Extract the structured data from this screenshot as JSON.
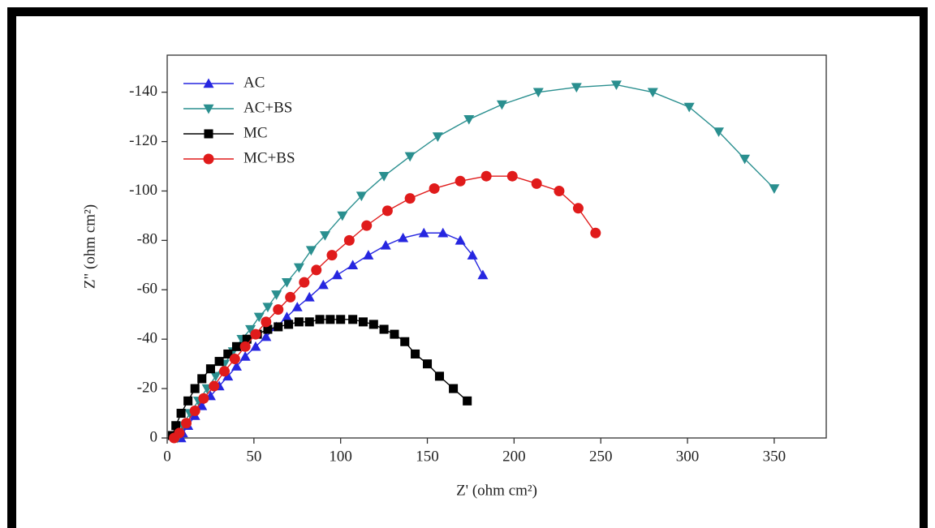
{
  "chart_data": {
    "type": "line",
    "xlabel": "Z' (ohm cm²)",
    "ylabel": "Z\" (ohm cm²)",
    "xlim": [
      0,
      380
    ],
    "ylim": [
      0,
      -155
    ],
    "xticks": [
      0,
      50,
      100,
      150,
      200,
      250,
      300,
      350
    ],
    "yticks": [
      0,
      -20,
      -40,
      -60,
      -80,
      -100,
      -120,
      -140
    ],
    "legend": "upper left",
    "series": [
      {
        "name": "AC",
        "color": "#2626e0",
        "marker": "triangle-up",
        "x": [
          8,
          9,
          12,
          16,
          20,
          25,
          30,
          35,
          40,
          45,
          51,
          57,
          63,
          69,
          75,
          82,
          90,
          98,
          107,
          116,
          126,
          136,
          148,
          159,
          169,
          176,
          182
        ],
        "values": [
          0,
          -2,
          -5,
          -9,
          -13,
          -17,
          -21,
          -25,
          -29,
          -33,
          -37,
          -41,
          -45,
          -49,
          -53,
          -57,
          -62,
          -66,
          -70,
          -74,
          -78,
          -81,
          -83,
          -83,
          -80,
          -74,
          -66
        ]
      },
      {
        "name": "AC+BS",
        "color": "#2a8f8f",
        "marker": "triangle-down",
        "x": [
          6,
          9,
          13,
          18,
          23,
          28,
          33,
          38,
          43,
          48,
          53,
          58,
          63,
          69,
          76,
          83,
          91,
          101,
          112,
          125,
          140,
          156,
          174,
          193,
          214,
          236,
          259,
          280,
          301,
          318,
          333,
          350
        ],
        "values": [
          0,
          -5,
          -10,
          -15,
          -20,
          -25,
          -30,
          -35,
          -40,
          -44,
          -49,
          -53,
          -58,
          -63,
          -69,
          -76,
          -82,
          -90,
          -98,
          -106,
          -114,
          -122,
          -129,
          -135,
          -140,
          -142,
          -143,
          -140,
          -134,
          -124,
          -113,
          -101
        ]
      },
      {
        "name": "MC",
        "color": "#000000",
        "marker": "square",
        "x": [
          3,
          5,
          8,
          12,
          16,
          20,
          25,
          30,
          35,
          40,
          46,
          52,
          58,
          64,
          70,
          76,
          82,
          88,
          94,
          100,
          107,
          113,
          119,
          125,
          131,
          137,
          143,
          150,
          157,
          165,
          173
        ],
        "values": [
          -1,
          -5,
          -10,
          -15,
          -20,
          -24,
          -28,
          -31,
          -34,
          -37,
          -40,
          -42,
          -44,
          -45,
          -46,
          -47,
          -47,
          -48,
          -48,
          -48,
          -48,
          -47,
          -46,
          -44,
          -42,
          -39,
          -34,
          -30,
          -25,
          -20,
          -15
        ]
      },
      {
        "name": "MC+BS",
        "color": "#e01b1b",
        "marker": "circle",
        "x": [
          4,
          7,
          11,
          16,
          21,
          27,
          33,
          39,
          45,
          51,
          57,
          64,
          71,
          79,
          86,
          95,
          105,
          115,
          127,
          140,
          154,
          169,
          184,
          199,
          213,
          226,
          237,
          247
        ],
        "values": [
          0,
          -2,
          -6,
          -11,
          -16,
          -21,
          -27,
          -32,
          -37,
          -42,
          -47,
          -52,
          -57,
          -63,
          -68,
          -74,
          -80,
          -86,
          -92,
          -97,
          -101,
          -104,
          -106,
          -106,
          -103,
          -100,
          -93,
          -83
        ]
      }
    ]
  }
}
